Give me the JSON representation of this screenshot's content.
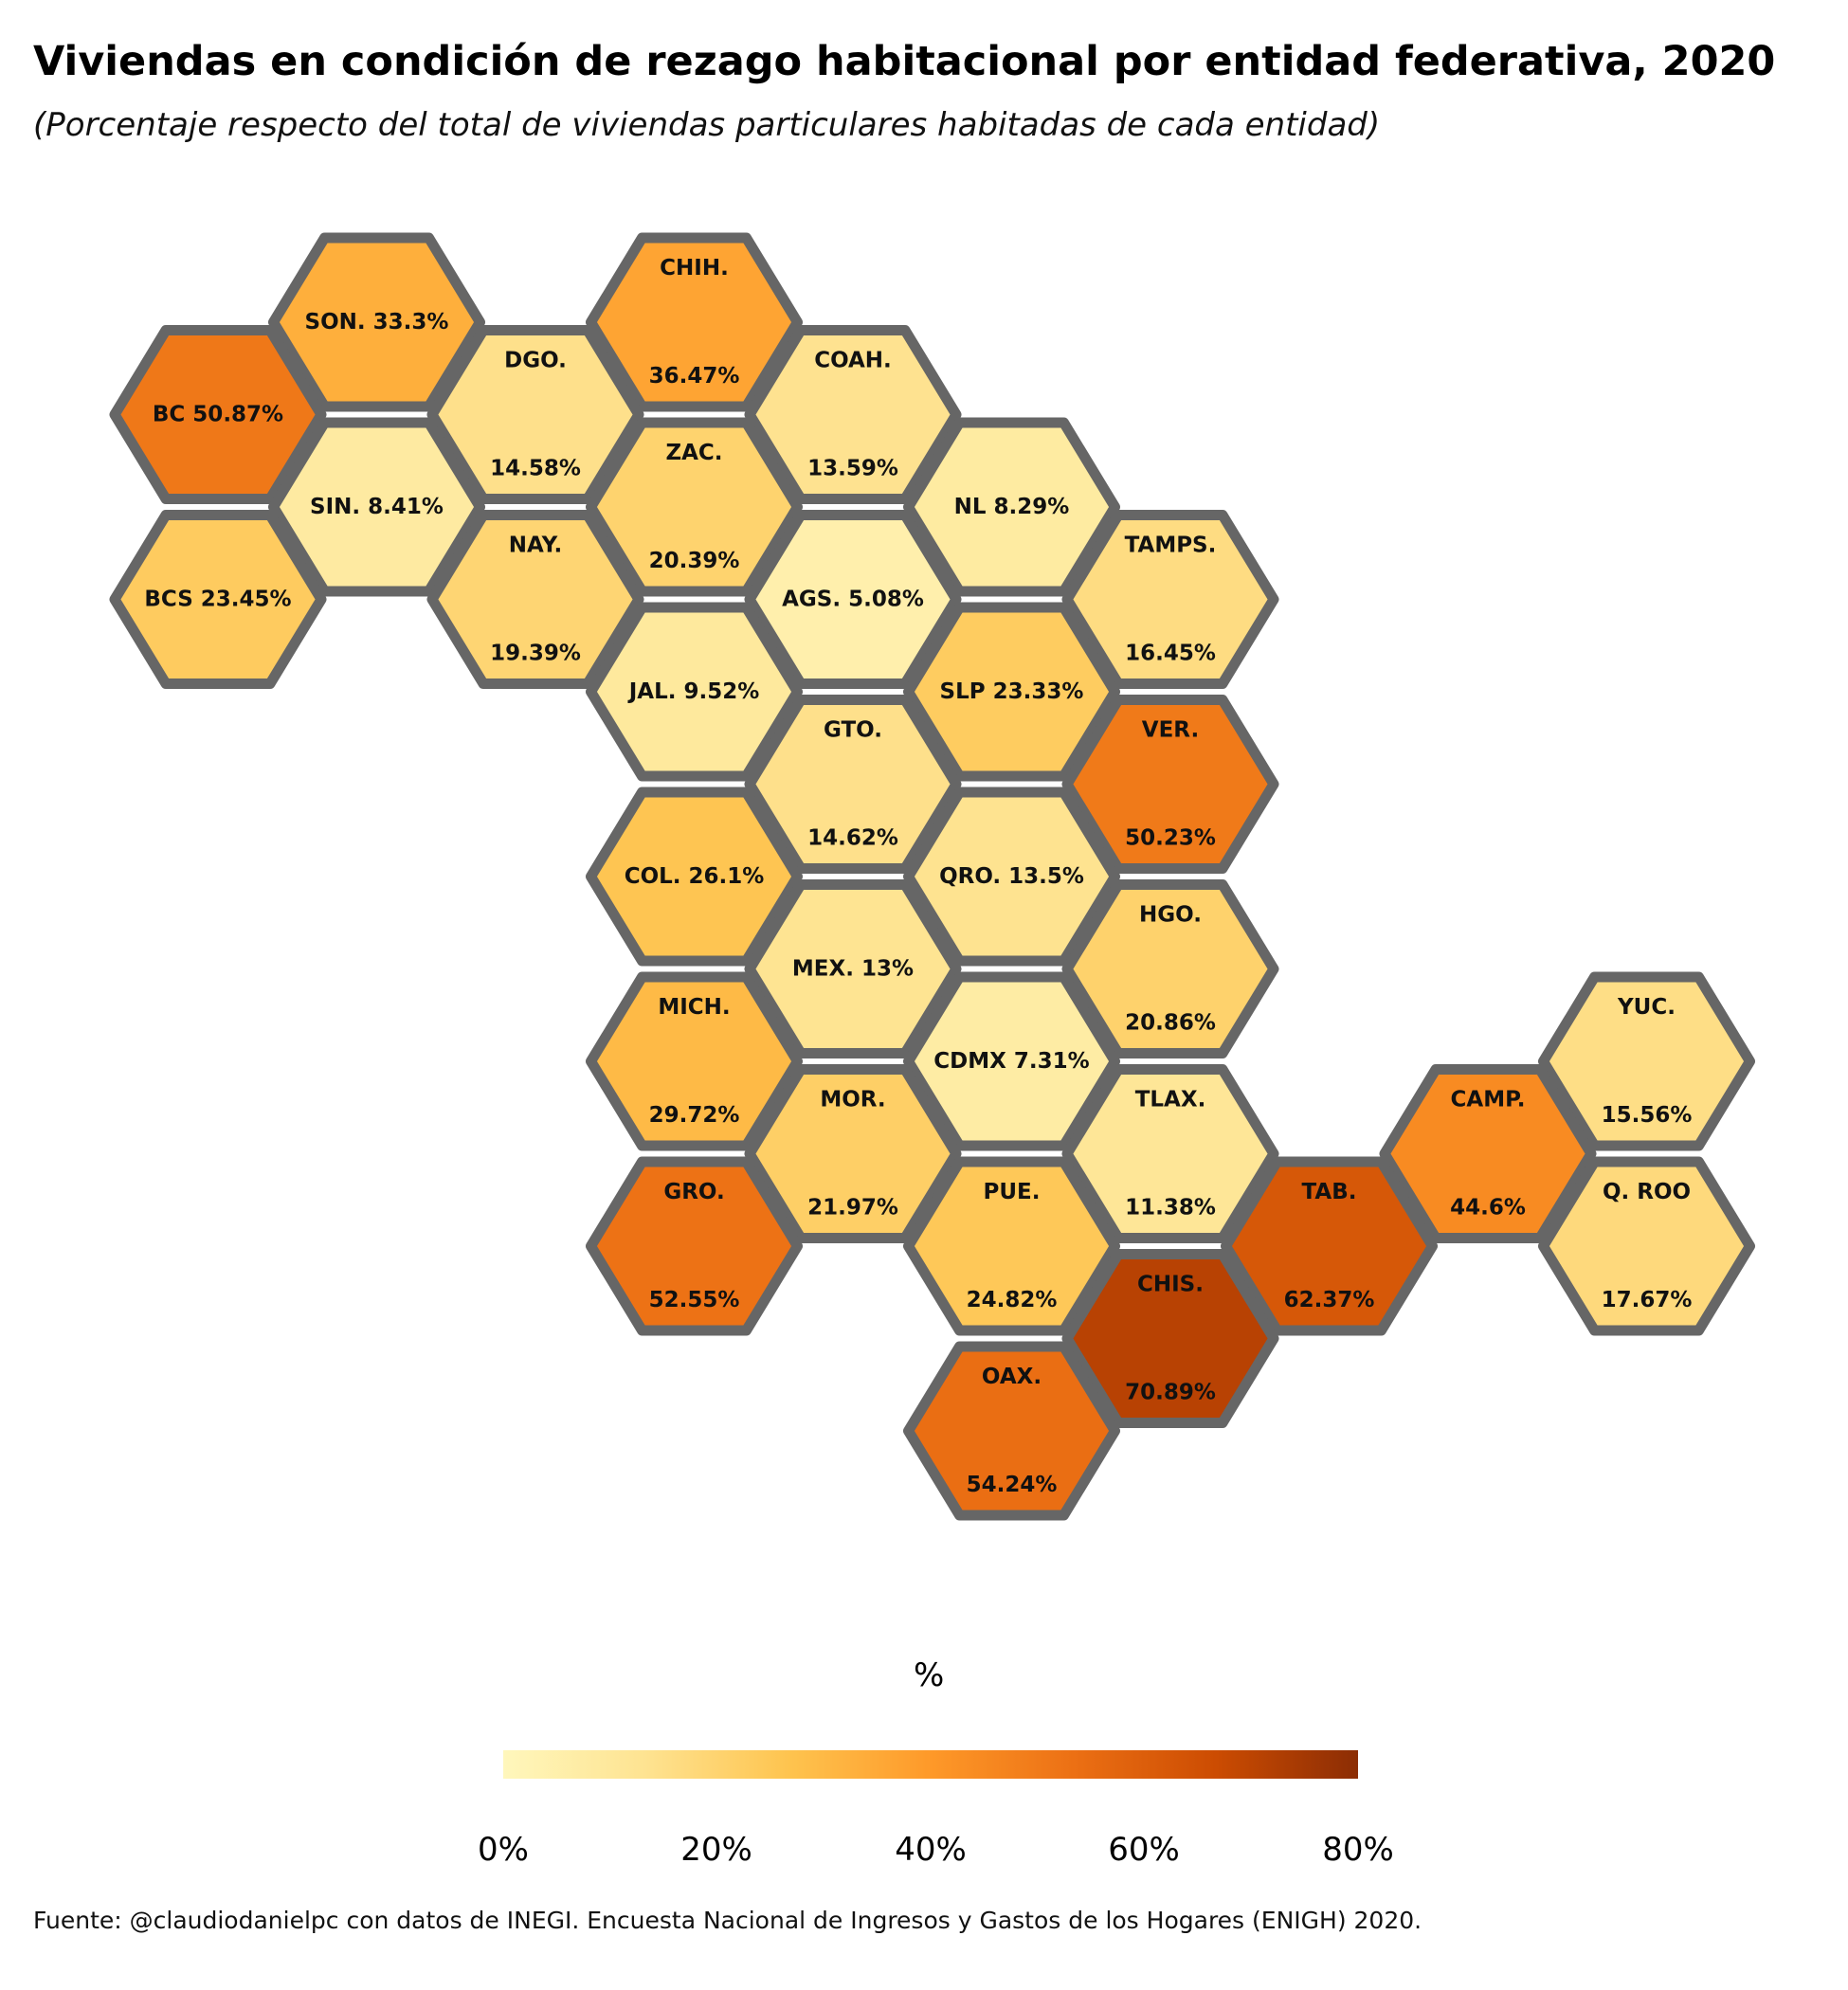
{
  "title": "Viviendas en condición de rezago habitacional por entidad federativa, 2020",
  "subtitle": "(Porcentaje respecto del total de viviendas particulares habitadas de cada entidad)",
  "source": "Fuente: @claudiodanielpc con datos de INEGI. Encuesta Nacional de Ingresos y Gastos de los Hogares (ENIGH) 2020.",
  "legend": {
    "title": "%",
    "ticks": [
      "0%",
      "20%",
      "40%",
      "60%",
      "80%"
    ],
    "range": [
      0,
      80
    ]
  },
  "colors": {
    "scale": [
      "#fff7bc",
      "#fee391",
      "#fec44f",
      "#fe9929",
      "#ec7014",
      "#cc4c02",
      "#8c2d04"
    ],
    "hex_border": "#666666"
  },
  "chart_data": {
    "type": "heatmap",
    "title": "Viviendas en condición de rezago habitacional por entidad federativa, 2020",
    "subtitle": "(Porcentaje respecto del total de viviendas particulares habitadas de cada entidad)",
    "legend_title": "%",
    "value_range": [
      0,
      80
    ],
    "series": [
      {
        "name": "SON.",
        "value": 33.3,
        "row": 0,
        "col": 1
      },
      {
        "name": "CHIH.",
        "value": 36.47,
        "row": 0,
        "col": 3
      },
      {
        "name": "BC",
        "value": 50.87,
        "row": 1,
        "col": 0
      },
      {
        "name": "DGO.",
        "value": 14.58,
        "row": 1,
        "col": 2
      },
      {
        "name": "COAH.",
        "value": 13.59,
        "row": 1,
        "col": 4
      },
      {
        "name": "SIN.",
        "value": 8.41,
        "row": 2,
        "col": 1
      },
      {
        "name": "ZAC.",
        "value": 20.39,
        "row": 2,
        "col": 3
      },
      {
        "name": "NL",
        "value": 8.29,
        "row": 2,
        "col": 5
      },
      {
        "name": "BCS",
        "value": 23.45,
        "row": 3,
        "col": 0
      },
      {
        "name": "NAY.",
        "value": 19.39,
        "row": 3,
        "col": 2
      },
      {
        "name": "AGS.",
        "value": 5.08,
        "row": 3,
        "col": 4
      },
      {
        "name": "TAMPS.",
        "value": 16.45,
        "row": 3,
        "col": 6
      },
      {
        "name": "JAL.",
        "value": 9.52,
        "row": 4,
        "col": 3
      },
      {
        "name": "SLP",
        "value": 23.33,
        "row": 4,
        "col": 5
      },
      {
        "name": "GTO.",
        "value": 14.62,
        "row": 5,
        "col": 4
      },
      {
        "name": "VER.",
        "value": 50.23,
        "row": 5,
        "col": 6
      },
      {
        "name": "COL.",
        "value": 26.1,
        "row": 6,
        "col": 3
      },
      {
        "name": "QRO.",
        "value": 13.5,
        "row": 6,
        "col": 5
      },
      {
        "name": "MEX.",
        "value": 13,
        "row": 7,
        "col": 4
      },
      {
        "name": "HGO.",
        "value": 20.86,
        "row": 7,
        "col": 6
      },
      {
        "name": "MICH.",
        "value": 29.72,
        "row": 8,
        "col": 3
      },
      {
        "name": "CDMX",
        "value": 7.31,
        "row": 8,
        "col": 5
      },
      {
        "name": "YUC.",
        "value": 15.56,
        "row": 8,
        "col": 9
      },
      {
        "name": "MOR.",
        "value": 21.97,
        "row": 9,
        "col": 4
      },
      {
        "name": "TLAX.",
        "value": 11.38,
        "row": 9,
        "col": 6
      },
      {
        "name": "CAMP.",
        "value": 44.6,
        "row": 9,
        "col": 8
      },
      {
        "name": "GRO.",
        "value": 52.55,
        "row": 10,
        "col": 3
      },
      {
        "name": "PUE.",
        "value": 24.82,
        "row": 10,
        "col": 5
      },
      {
        "name": "TAB.",
        "value": 62.37,
        "row": 10,
        "col": 7
      },
      {
        "name": "Q. ROO",
        "value": 17.67,
        "row": 10,
        "col": 9
      },
      {
        "name": "CHIS.",
        "value": 70.89,
        "row": 11,
        "col": 6
      },
      {
        "name": "OAX.",
        "value": 54.24,
        "row": 12,
        "col": 5
      }
    ],
    "labels": [
      {
        "text": "SON. 33.3%",
        "hex": 0,
        "pos": "mid"
      },
      {
        "text": "CHIH.",
        "hex": 1,
        "pos": "top"
      },
      {
        "text": "36.47%",
        "hex": 1,
        "pos": "bottom"
      },
      {
        "text": "BC 50.87%",
        "hex": 2,
        "pos": "mid"
      },
      {
        "text": "DGO.",
        "hex": 3,
        "pos": "top"
      },
      {
        "text": "14.58%",
        "hex": 3,
        "pos": "bottom"
      },
      {
        "text": "COAH.",
        "hex": 4,
        "pos": "top"
      },
      {
        "text": "13.59%",
        "hex": 4,
        "pos": "bottom"
      },
      {
        "text": "SIN. 8.41%",
        "hex": 5,
        "pos": "mid"
      },
      {
        "text": "ZAC.",
        "hex": 6,
        "pos": "top"
      },
      {
        "text": "20.39%",
        "hex": 6,
        "pos": "bottom"
      },
      {
        "text": "NL 8.29%",
        "hex": 7,
        "pos": "mid"
      },
      {
        "text": "BCS 23.45%",
        "hex": 8,
        "pos": "mid"
      },
      {
        "text": "NAY.",
        "hex": 9,
        "pos": "top"
      },
      {
        "text": "19.39%",
        "hex": 9,
        "pos": "bottom"
      },
      {
        "text": "AGS. 5.08%",
        "hex": 10,
        "pos": "mid"
      },
      {
        "text": "TAMPS.",
        "hex": 11,
        "pos": "top"
      },
      {
        "text": "16.45%",
        "hex": 11,
        "pos": "bottom"
      },
      {
        "text": "JAL. 9.52%",
        "hex": 12,
        "pos": "mid"
      },
      {
        "text": "SLP 23.33%",
        "hex": 13,
        "pos": "mid"
      },
      {
        "text": "GTO.",
        "hex": 14,
        "pos": "top"
      },
      {
        "text": "14.62%",
        "hex": 14,
        "pos": "bottom"
      },
      {
        "text": "VER.",
        "hex": 15,
        "pos": "top"
      },
      {
        "text": "50.23%",
        "hex": 15,
        "pos": "bottom"
      },
      {
        "text": "COL. 26.1%",
        "hex": 16,
        "pos": "mid"
      },
      {
        "text": "QRO. 13.5%",
        "hex": 17,
        "pos": "mid"
      },
      {
        "text": "MEX. 13%",
        "hex": 18,
        "pos": "mid"
      },
      {
        "text": "HGO.",
        "hex": 19,
        "pos": "top"
      },
      {
        "text": "20.86%",
        "hex": 19,
        "pos": "bottom"
      },
      {
        "text": "MICH.",
        "hex": 20,
        "pos": "top"
      },
      {
        "text": "29.72%",
        "hex": 20,
        "pos": "bottom"
      },
      {
        "text": "CDMX 7.31%",
        "hex": 21,
        "pos": "mid"
      },
      {
        "text": "YUC.",
        "hex": 22,
        "pos": "top"
      },
      {
        "text": "15.56%",
        "hex": 22,
        "pos": "bottom"
      },
      {
        "text": "MOR.",
        "hex": 23,
        "pos": "top"
      },
      {
        "text": "21.97%",
        "hex": 23,
        "pos": "bottom"
      },
      {
        "text": "TLAX.",
        "hex": 24,
        "pos": "top"
      },
      {
        "text": "11.38%",
        "hex": 24,
        "pos": "bottom"
      },
      {
        "text": "CAMP.",
        "hex": 25,
        "pos": "top"
      },
      {
        "text": "44.6%",
        "hex": 25,
        "pos": "bottom"
      },
      {
        "text": "GRO.",
        "hex": 26,
        "pos": "top"
      },
      {
        "text": "52.55%",
        "hex": 26,
        "pos": "bottom"
      },
      {
        "text": "PUE.",
        "hex": 27,
        "pos": "top"
      },
      {
        "text": "24.82%",
        "hex": 27,
        "pos": "bottom"
      },
      {
        "text": "TAB.",
        "hex": 28,
        "pos": "top"
      },
      {
        "text": "62.37%",
        "hex": 28,
        "pos": "bottom"
      },
      {
        "text": "Q. ROO",
        "hex": 29,
        "pos": "top"
      },
      {
        "text": "17.67%",
        "hex": 29,
        "pos": "bottom"
      },
      {
        "text": "CHIS.",
        "hex": 30,
        "pos": "top"
      },
      {
        "text": "70.89%",
        "hex": 30,
        "pos": "bottom"
      },
      {
        "text": "OAX.",
        "hex": 31,
        "pos": "top"
      },
      {
        "text": "54.24%",
        "hex": 31,
        "pos": "bottom"
      }
    ]
  }
}
